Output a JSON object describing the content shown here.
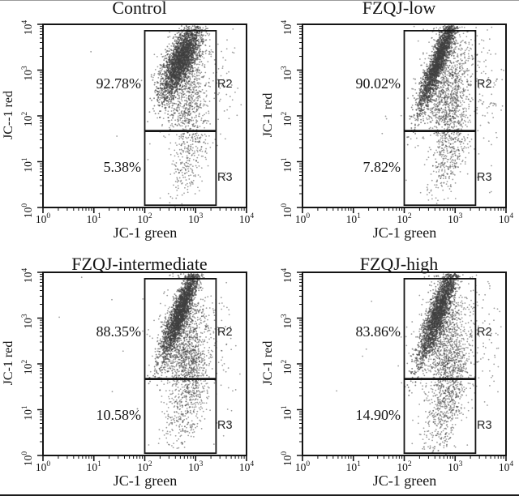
{
  "figure_background": "#ffffff",
  "chart_data": {
    "type": "scatter",
    "subtype": "flow-cytometry-dot-plot-grid",
    "scale": "log-log",
    "axis": {
      "xlim": [
        1,
        10000
      ],
      "ylim": [
        1,
        10000
      ],
      "tick_label_base": "10",
      "tick_exponents": [
        0,
        1,
        2,
        3,
        4
      ]
    },
    "dot_color": "#3f3f3f",
    "frame_color": "#141414",
    "panels": [
      {
        "title": "Control",
        "xlabel": "JC-1 green",
        "ylabel": "JC--1 red",
        "gates": {
          "r2_label": "R2",
          "r3_label": "R3",
          "r2_percent": "92.78%",
          "r3_percent": "5.38%"
        },
        "gate_box": {
          "x0": 2.0,
          "x1": 3.4,
          "y0": 0.05,
          "y1": 3.86,
          "divider": 1.67
        },
        "clusters": [
          {
            "cx": 2.72,
            "cy": 3.25,
            "sx": 0.2,
            "sy": 0.27,
            "shear": 0.3,
            "n": 2300,
            "alpha": 0.6,
            "r": 0.95
          },
          {
            "cx": 2.78,
            "cy": 2.9,
            "sx": 0.26,
            "sy": 0.45,
            "shear": 0.2,
            "n": 750,
            "alpha": 0.5,
            "r": 0.9
          },
          {
            "cx": 2.86,
            "cy": 2.15,
            "sx": 0.17,
            "sy": 0.38,
            "shear": 0.1,
            "n": 280,
            "alpha": 0.5,
            "r": 0.9
          },
          {
            "cx": 2.88,
            "cy": 1.15,
            "sx": 0.19,
            "sy": 0.42,
            "shear": 0.28,
            "n": 290,
            "alpha": 0.5,
            "r": 0.9
          },
          {
            "cx": 3.6,
            "cy": 2.7,
            "sx": 0.16,
            "sy": 0.7,
            "shear": 0,
            "n": 45,
            "alpha": 0.5,
            "r": 0.9
          },
          {
            "cx": 2.0,
            "cy": 2.0,
            "sx": 1.0,
            "sy": 1.0,
            "shear": 0,
            "n": 7,
            "alpha": 0.5,
            "r": 0.9
          }
        ]
      },
      {
        "title": "FZQJ-low",
        "xlabel": "JC-1 green",
        "ylabel": "JC-1 red",
        "gates": {
          "r2_label": "R2",
          "r3_label": "R3",
          "r2_percent": "90.02%",
          "r3_percent": "7.82%"
        },
        "gate_box": {
          "x0": 2.0,
          "x1": 3.4,
          "y0": 0.05,
          "y1": 3.86,
          "divider": 1.67
        },
        "clusters": [
          {
            "cx": 2.7,
            "cy": 3.3,
            "sx": 0.21,
            "sy": 0.22,
            "shear": 0.55,
            "n": 2300,
            "alpha": 0.6,
            "r": 0.95
          },
          {
            "cx": 2.83,
            "cy": 2.8,
            "sx": 0.27,
            "sy": 0.5,
            "shear": 0.2,
            "n": 950,
            "alpha": 0.5,
            "r": 0.9
          },
          {
            "cx": 2.88,
            "cy": 2.05,
            "sx": 0.18,
            "sy": 0.35,
            "shear": 0.1,
            "n": 300,
            "alpha": 0.5,
            "r": 0.9
          },
          {
            "cx": 2.9,
            "cy": 1.2,
            "sx": 0.21,
            "sy": 0.45,
            "shear": 0.3,
            "n": 400,
            "alpha": 0.5,
            "r": 0.9
          },
          {
            "cx": 3.65,
            "cy": 2.5,
            "sx": 0.18,
            "sy": 0.9,
            "shear": 0,
            "n": 85,
            "alpha": 0.5,
            "r": 0.9
          },
          {
            "cx": 2.8,
            "cy": 3.95,
            "sx": 0.25,
            "sy": 0.07,
            "shear": 0,
            "n": 40,
            "alpha": 0.5,
            "r": 0.9
          },
          {
            "cx": 2.0,
            "cy": 2.0,
            "sx": 1.0,
            "sy": 1.0,
            "shear": 0,
            "n": 7,
            "alpha": 0.5,
            "r": 0.9
          }
        ]
      },
      {
        "title": "FZQJ-intermediate",
        "xlabel": "JC-1 green",
        "ylabel": "JC-1 red",
        "gates": {
          "r2_label": "R2",
          "r3_label": "R3",
          "r2_percent": "88.35%",
          "r3_percent": "10.58%"
        },
        "gate_box": {
          "x0": 2.0,
          "x1": 3.4,
          "y0": 0.05,
          "y1": 3.86,
          "divider": 1.67
        },
        "clusters": [
          {
            "cx": 2.72,
            "cy": 3.2,
            "sx": 0.2,
            "sy": 0.24,
            "shear": 0.5,
            "n": 2400,
            "alpha": 0.6,
            "r": 0.95
          },
          {
            "cx": 2.78,
            "cy": 2.65,
            "sx": 0.26,
            "sy": 0.5,
            "shear": 0.15,
            "n": 850,
            "alpha": 0.5,
            "r": 0.9
          },
          {
            "cx": 2.84,
            "cy": 2.0,
            "sx": 0.18,
            "sy": 0.3,
            "shear": 0.1,
            "n": 300,
            "alpha": 0.5,
            "r": 0.9
          },
          {
            "cx": 2.85,
            "cy": 1.25,
            "sx": 0.22,
            "sy": 0.45,
            "shear": 0.3,
            "n": 540,
            "alpha": 0.5,
            "r": 0.9
          },
          {
            "cx": 3.6,
            "cy": 2.4,
            "sx": 0.16,
            "sy": 0.8,
            "shear": 0,
            "n": 45,
            "alpha": 0.5,
            "r": 0.9
          },
          {
            "cx": 2.85,
            "cy": 3.95,
            "sx": 0.25,
            "sy": 0.07,
            "shear": 0,
            "n": 30,
            "alpha": 0.5,
            "r": 0.9
          },
          {
            "cx": 2.0,
            "cy": 2.0,
            "sx": 1.0,
            "sy": 1.0,
            "shear": 0,
            "n": 7,
            "alpha": 0.5,
            "r": 0.9
          }
        ]
      },
      {
        "title": "FZQJ-high",
        "xlabel": "JC-1 green",
        "ylabel": "JC-1 red",
        "gates": {
          "r2_label": "R2",
          "r3_label": "R3",
          "r2_percent": "83.86%",
          "r3_percent": "14.90%"
        },
        "gate_box": {
          "x0": 2.0,
          "x1": 3.4,
          "y0": 0.05,
          "y1": 3.86,
          "divider": 1.67
        },
        "clusters": [
          {
            "cx": 2.68,
            "cy": 3.15,
            "sx": 0.2,
            "sy": 0.26,
            "shear": 0.5,
            "n": 2200,
            "alpha": 0.6,
            "r": 0.95
          },
          {
            "cx": 2.78,
            "cy": 2.7,
            "sx": 0.26,
            "sy": 0.5,
            "shear": 0.2,
            "n": 800,
            "alpha": 0.5,
            "r": 0.9
          },
          {
            "cx": 2.84,
            "cy": 2.1,
            "sx": 0.18,
            "sy": 0.3,
            "shear": 0.1,
            "n": 230,
            "alpha": 0.5,
            "r": 0.9
          },
          {
            "cx": 2.88,
            "cy": 1.3,
            "sx": 0.24,
            "sy": 0.5,
            "shear": 0.45,
            "n": 780,
            "alpha": 0.5,
            "r": 0.9
          },
          {
            "cx": 3.65,
            "cy": 2.6,
            "sx": 0.18,
            "sy": 0.8,
            "shear": 0,
            "n": 55,
            "alpha": 0.5,
            "r": 0.9
          },
          {
            "cx": 2.8,
            "cy": 3.95,
            "sx": 0.25,
            "sy": 0.07,
            "shear": 0,
            "n": 35,
            "alpha": 0.5,
            "r": 0.9
          },
          {
            "cx": 2.0,
            "cy": 2.0,
            "sx": 1.0,
            "sy": 1.0,
            "shear": 0,
            "n": 7,
            "alpha": 0.5,
            "r": 0.9
          }
        ]
      }
    ]
  }
}
